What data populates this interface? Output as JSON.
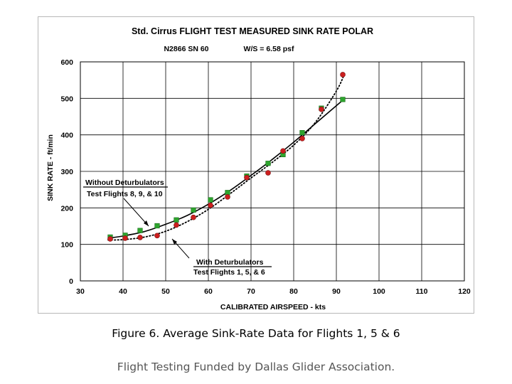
{
  "chart_data": {
    "type": "scatter",
    "title": "Std. Cirrus  FLIGHT TEST MEASURED SINK RATE POLAR",
    "subtitle_left": "N2866 SN 60",
    "subtitle_right": "W/S = 6.58  psf",
    "xlabel": "CALIBRATED AIRSPEED - kts",
    "ylabel": "SINK RATE - ft/min",
    "xlim": [
      30,
      120
    ],
    "ylim": [
      0,
      600
    ],
    "xticks": [
      "30",
      "40",
      "50",
      "60",
      "70",
      "80",
      "90",
      "100",
      "110",
      "120"
    ],
    "yticks": [
      "0",
      "100",
      "200",
      "300",
      "400",
      "500",
      "600"
    ],
    "grid": true,
    "series": [
      {
        "name": "Without  Deturbulators",
        "marker": "square",
        "color": "#2ea52e",
        "points": [
          [
            37,
            120
          ],
          [
            40.5,
            125
          ],
          [
            44,
            138
          ],
          [
            48,
            151
          ],
          [
            52.5,
            167
          ],
          [
            56.5,
            194
          ],
          [
            60.5,
            222
          ],
          [
            64.5,
            242
          ],
          [
            69,
            287
          ],
          [
            74,
            322
          ],
          [
            77.5,
            346
          ],
          [
            82,
            406
          ],
          [
            86.5,
            473
          ],
          [
            91.5,
            497
          ]
        ]
      },
      {
        "name": "With Deturbulators",
        "marker": "circle",
        "color": "#cc1f1f",
        "points": [
          [
            37,
            115
          ],
          [
            40.5,
            117
          ],
          [
            44,
            119
          ],
          [
            48,
            124
          ],
          [
            52.5,
            153
          ],
          [
            56.5,
            174
          ],
          [
            60.5,
            207
          ],
          [
            64.5,
            230
          ],
          [
            69,
            283
          ],
          [
            74,
            296
          ],
          [
            77.5,
            356
          ],
          [
            82,
            390
          ],
          [
            86.5,
            470
          ],
          [
            91.5,
            565
          ]
        ]
      }
    ],
    "fit_lines": [
      {
        "style": "solid",
        "points": [
          [
            36.5,
            117
          ],
          [
            40,
            123
          ],
          [
            45,
            135
          ],
          [
            50,
            155
          ],
          [
            55,
            179
          ],
          [
            60,
            210
          ],
          [
            65,
            247
          ],
          [
            70,
            289
          ],
          [
            75,
            333
          ],
          [
            80,
            380
          ],
          [
            85,
            430
          ],
          [
            90,
            480
          ],
          [
            92,
            500
          ]
        ]
      },
      {
        "style": "dotted",
        "points": [
          [
            36.5,
            112
          ],
          [
            40,
            113
          ],
          [
            45,
            120
          ],
          [
            50,
            136
          ],
          [
            55,
            162
          ],
          [
            60,
            196
          ],
          [
            65,
            238
          ],
          [
            70,
            282
          ],
          [
            75,
            325
          ],
          [
            80,
            372
          ],
          [
            85,
            433
          ],
          [
            90,
            520
          ],
          [
            92,
            570
          ]
        ]
      }
    ],
    "annotations": [
      {
        "id": "without",
        "lines": [
          "Without  Deturbulators",
          "Test Flights 8, 9, & 10"
        ]
      },
      {
        "id": "with",
        "lines": [
          "With Deturbulators",
          "Test Flights 1, 5, & 6"
        ]
      }
    ]
  },
  "caption": "Figure 6. Average Sink-Rate Data for Flights 1, 5 & 6",
  "footer": "Flight Testing Funded by Dallas Glider Association."
}
